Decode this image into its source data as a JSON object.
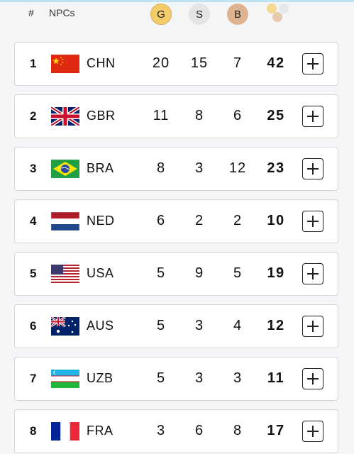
{
  "header": {
    "rank_label": "#",
    "npcs_label": "NPCs",
    "gold_label": "G",
    "silver_label": "S",
    "bronze_label": "B",
    "total_icon": "medals-total-icon"
  },
  "colors": {
    "gold": "#f3cc6c",
    "silver": "#e3e4e6",
    "bronze": "#ddb48f"
  },
  "rows": [
    {
      "rank": "1",
      "code": "CHN",
      "flag": "china-flag",
      "gold": "20",
      "silver": "15",
      "bronze": "7",
      "total": "42"
    },
    {
      "rank": "2",
      "code": "GBR",
      "flag": "uk-flag",
      "gold": "11",
      "silver": "8",
      "bronze": "6",
      "total": "25"
    },
    {
      "rank": "3",
      "code": "BRA",
      "flag": "brazil-flag",
      "gold": "8",
      "silver": "3",
      "bronze": "12",
      "total": "23"
    },
    {
      "rank": "4",
      "code": "NED",
      "flag": "netherlands-flag",
      "gold": "6",
      "silver": "2",
      "bronze": "2",
      "total": "10"
    },
    {
      "rank": "5",
      "code": "USA",
      "flag": "usa-flag",
      "gold": "5",
      "silver": "9",
      "bronze": "5",
      "total": "19"
    },
    {
      "rank": "6",
      "code": "AUS",
      "flag": "australia-flag",
      "gold": "5",
      "silver": "3",
      "bronze": "4",
      "total": "12"
    },
    {
      "rank": "7",
      "code": "UZB",
      "flag": "uzbekistan-flag",
      "gold": "5",
      "silver": "3",
      "bronze": "3",
      "total": "11"
    },
    {
      "rank": "8",
      "code": "FRA",
      "flag": "france-flag",
      "gold": "3",
      "silver": "6",
      "bronze": "8",
      "total": "17"
    }
  ]
}
